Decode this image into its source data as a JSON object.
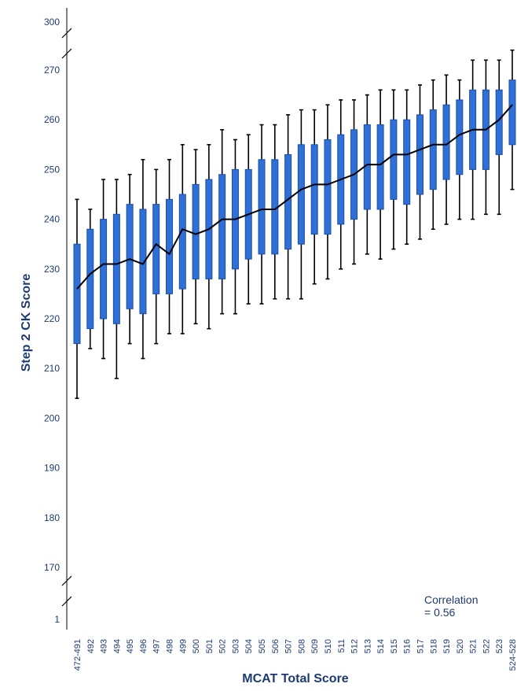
{
  "chart_data": {
    "type": "boxplot",
    "xlabel": "MCAT Total Score",
    "ylabel": "Step 2 CK Score",
    "y_axis_breaks": [
      [
        1,
        170
      ],
      [
        270,
        300
      ]
    ],
    "y_ticks": [
      "300",
      "270",
      "260",
      "250",
      "240",
      "230",
      "220",
      "210",
      "200",
      "190",
      "180",
      "170",
      "1"
    ],
    "categories": [
      "472-491",
      "492",
      "493",
      "494",
      "495",
      "496",
      "497",
      "498",
      "499",
      "500",
      "501",
      "502",
      "503",
      "504",
      "505",
      "506",
      "507",
      "508",
      "509",
      "510",
      "511",
      "512",
      "513",
      "514",
      "515",
      "516",
      "517",
      "518",
      "519",
      "520",
      "521",
      "522",
      "523",
      "524-528"
    ],
    "whisker_low": [
      204,
      214,
      212,
      208,
      215,
      212,
      215,
      217,
      217,
      219,
      218,
      221,
      221,
      223,
      223,
      224,
      224,
      224,
      227,
      228,
      230,
      231,
      233,
      232,
      234,
      235,
      236,
      238,
      239,
      240,
      240,
      241,
      241,
      246
    ],
    "q1": [
      215,
      218,
      220,
      219,
      222,
      221,
      225,
      225,
      226,
      228,
      228,
      228,
      230,
      232,
      233,
      233,
      234,
      235,
      237,
      237,
      239,
      240,
      242,
      242,
      244,
      243,
      245,
      246,
      248,
      249,
      250,
      250,
      253,
      255
    ],
    "median": [
      226,
      229,
      231,
      231,
      232,
      231,
      235,
      233,
      238,
      237,
      238,
      240,
      240,
      241,
      242,
      242,
      244,
      246,
      247,
      247,
      248,
      249,
      251,
      251,
      253,
      253,
      254,
      255,
      255,
      257,
      258,
      258,
      260,
      263
    ],
    "q3": [
      235,
      238,
      240,
      241,
      243,
      242,
      243,
      244,
      245,
      247,
      248,
      249,
      250,
      250,
      252,
      252,
      253,
      255,
      255,
      256,
      257,
      258,
      259,
      259,
      260,
      260,
      261,
      262,
      263,
      264,
      266,
      266,
      266,
      268
    ],
    "whisker_high": [
      244,
      242,
      248,
      248,
      249,
      252,
      250,
      252,
      255,
      254,
      255,
      258,
      256,
      257,
      259,
      259,
      261,
      262,
      262,
      263,
      264,
      264,
      265,
      266,
      266,
      266,
      267,
      268,
      269,
      268,
      272,
      272,
      272,
      274
    ],
    "box_color": "#2f6fd6",
    "median_line_color": "#000000",
    "text_color": "#1f3a73"
  },
  "annotation": {
    "line1": "Correlation",
    "line2": "= 0.56"
  }
}
